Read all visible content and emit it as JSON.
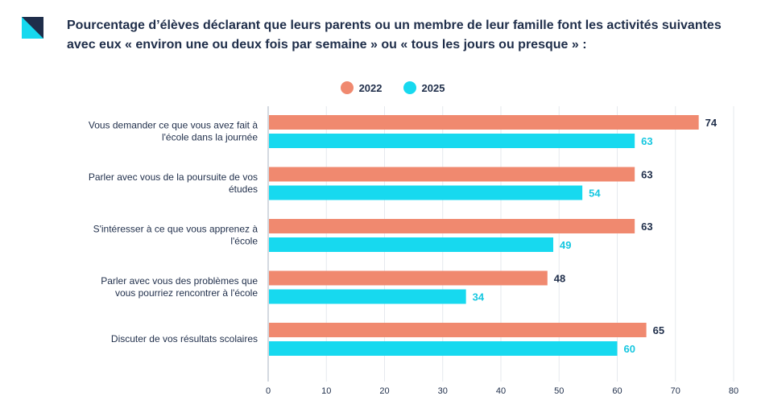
{
  "header": {
    "title": "Pourcentage d’élèves déclarant que leurs parents ou un membre de leur famille font les activités suivantes avec eux « environ une ou deux fois par semaine » ou « tous les jours ou presque » :"
  },
  "colors": {
    "series_2022": "#f0896f",
    "series_2025": "#17d9ef",
    "label_2022": "#1f2e4a",
    "label_2025": "#17c7e0",
    "logo_dark": "#1f2e4a",
    "logo_accent": "#17d9ef"
  },
  "chart_data": {
    "type": "bar",
    "orientation": "horizontal",
    "categories": [
      [
        "Vous demander ce que vous avez fait à",
        "l'école dans la journée"
      ],
      [
        "Parler avec vous de la poursuite de vos",
        "études"
      ],
      [
        "S'intéresser à ce que vous apprenez à",
        "l'école"
      ],
      [
        "Parler avec vous des problèmes que",
        "vous pourriez rencontrer à l'école"
      ],
      [
        "Discuter de vos résultats scolaires"
      ]
    ],
    "series": [
      {
        "name": "2022",
        "values": [
          74,
          63,
          63,
          48,
          65
        ]
      },
      {
        "name": "2025",
        "values": [
          63,
          54,
          49,
          34,
          60
        ]
      }
    ],
    "xlim": [
      0,
      80
    ],
    "xticks": [
      0,
      10,
      20,
      30,
      40,
      50,
      60,
      70,
      80
    ],
    "grid": true,
    "legend_position": "top-center",
    "data_labels": true
  }
}
